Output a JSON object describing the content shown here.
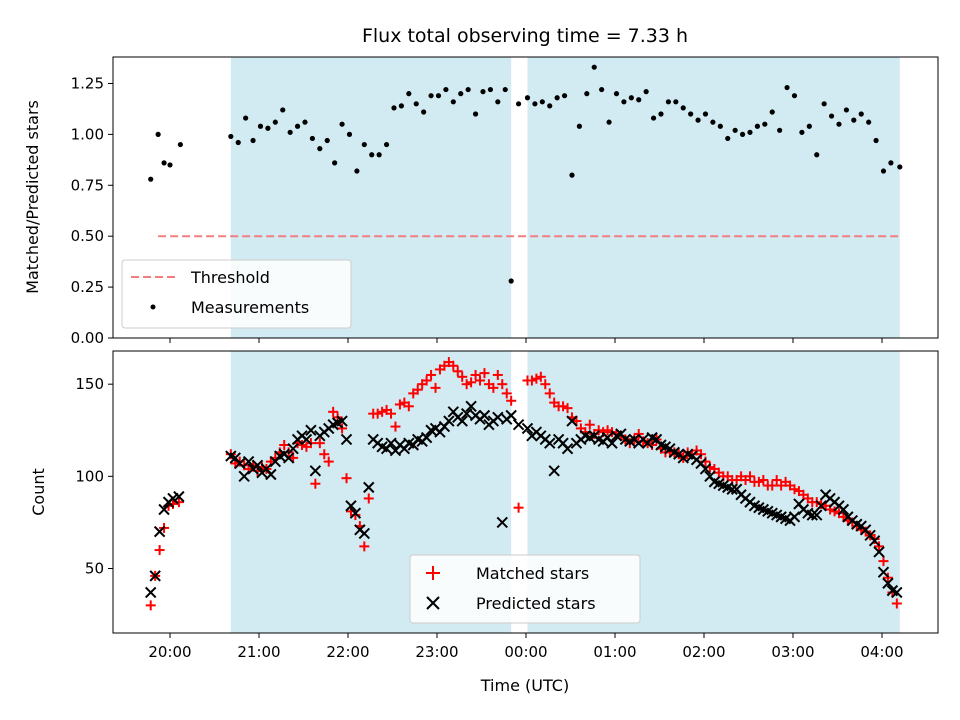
{
  "chart_data": {
    "type": "scatter",
    "title": "Flux total observing time = 7.33 h",
    "xlabel": "Time (UTC)",
    "x_ticks": [
      "20:00",
      "21:00",
      "22:00",
      "23:00",
      "00:00",
      "01:00",
      "02:00",
      "03:00",
      "04:00"
    ],
    "shaded_intervals": [
      [
        "20:41",
        "23:50"
      ],
      [
        "00:01",
        "04:12"
      ]
    ],
    "colors": {
      "shade": "#add8e6",
      "matched": "#ff0000",
      "predicted": "#000000",
      "threshold": "#f08080",
      "measurements": "#000000"
    },
    "panels": [
      {
        "ylabel": "Matched/Predicted stars",
        "ylim": [
          0,
          1.38
        ],
        "yticks": [
          "0.00",
          "0.25",
          "0.50",
          "0.75",
          "1.00",
          "1.25"
        ],
        "legend": {
          "placement": "lower-left",
          "entries": [
            "Threshold",
            "Measurements"
          ]
        },
        "series": [
          {
            "name": "Threshold",
            "style": "dashed-line",
            "x": [
              "19:52",
              "04:12"
            ],
            "values": [
              0.5,
              0.5
            ]
          },
          {
            "name": "Measurements",
            "style": "dots",
            "x": [
              "19:47",
              "19:52",
              "19:56",
              "20:00",
              "20:07",
              "20:41",
              "20:46",
              "20:51",
              "20:56",
              "21:01",
              "21:06",
              "21:11",
              "21:16",
              "21:21",
              "21:26",
              "21:31",
              "21:36",
              "21:41",
              "21:46",
              "21:51",
              "21:56",
              "22:01",
              "22:06",
              "22:11",
              "22:16",
              "22:21",
              "22:26",
              "22:31",
              "22:36",
              "22:41",
              "22:46",
              "22:51",
              "22:56",
              "23:01",
              "23:06",
              "23:11",
              "23:16",
              "23:21",
              "23:26",
              "23:31",
              "23:36",
              "23:41",
              "23:46",
              "23:50",
              "23:55",
              "00:01",
              "00:06",
              "00:11",
              "00:16",
              "00:21",
              "00:26",
              "00:31",
              "00:36",
              "00:41",
              "00:46",
              "00:51",
              "00:56",
              "01:01",
              "01:06",
              "01:11",
              "01:16",
              "01:21",
              "01:26",
              "01:31",
              "01:36",
              "01:41",
              "01:46",
              "01:51",
              "01:56",
              "02:01",
              "02:06",
              "02:11",
              "02:16",
              "02:21",
              "02:26",
              "02:31",
              "02:36",
              "02:41",
              "02:46",
              "02:51",
              "02:56",
              "03:01",
              "03:06",
              "03:11",
              "03:16",
              "03:21",
              "03:26",
              "03:31",
              "03:36",
              "03:41",
              "03:46",
              "03:51",
              "03:56",
              "04:01",
              "04:06",
              "04:12"
            ],
            "values": [
              0.78,
              1.0,
              0.86,
              0.85,
              0.95,
              0.99,
              0.96,
              1.08,
              0.97,
              1.04,
              1.03,
              1.06,
              1.12,
              1.01,
              1.04,
              1.06,
              0.98,
              0.93,
              0.97,
              0.86,
              1.05,
              1.0,
              0.82,
              0.95,
              0.9,
              0.9,
              0.95,
              1.13,
              1.14,
              1.2,
              1.15,
              1.11,
              1.19,
              1.19,
              1.22,
              1.16,
              1.2,
              1.22,
              1.1,
              1.21,
              1.22,
              1.16,
              1.22,
              0.28,
              1.15,
              1.18,
              1.15,
              1.16,
              1.14,
              1.18,
              1.19,
              0.8,
              1.04,
              1.2,
              1.33,
              1.22,
              1.06,
              1.2,
              1.16,
              1.18,
              1.17,
              1.21,
              1.08,
              1.1,
              1.16,
              1.16,
              1.13,
              1.1,
              1.07,
              1.1,
              1.06,
              1.04,
              0.98,
              1.02,
              1.0,
              1.01,
              1.04,
              1.05,
              1.11,
              1.02,
              1.23,
              1.19,
              1.01,
              1.04,
              0.9,
              1.15,
              1.09,
              1.05,
              1.12,
              1.07,
              1.1,
              1.06,
              0.97,
              0.82,
              0.86,
              0.84
            ]
          }
        ]
      },
      {
        "ylabel": "Count",
        "ylim": [
          15,
          168
        ],
        "yticks": [
          "50",
          "100",
          "150"
        ],
        "legend": {
          "placement": "lower-center",
          "entries": [
            "Matched stars",
            "Predicted stars"
          ]
        },
        "series": [
          {
            "name": "Matched stars",
            "style": "plus",
            "x": [
              "19:47",
              "19:50",
              "19:53",
              "19:56",
              "19:59",
              "20:02",
              "20:06",
              "20:41",
              "20:44",
              "20:47",
              "20:50",
              "20:53",
              "20:56",
              "20:59",
              "21:02",
              "21:05",
              "21:08",
              "21:11",
              "21:14",
              "21:17",
              "21:20",
              "21:23",
              "21:26",
              "21:29",
              "21:32",
              "21:35",
              "21:38",
              "21:41",
              "21:44",
              "21:47",
              "21:50",
              "21:53",
              "21:56",
              "21:59",
              "22:02",
              "22:05",
              "22:08",
              "22:11",
              "22:14",
              "22:17",
              "22:20",
              "22:23",
              "22:26",
              "22:29",
              "22:32",
              "22:35",
              "22:38",
              "22:41",
              "22:44",
              "22:47",
              "22:50",
              "22:53",
              "22:56",
              "22:59",
              "23:02",
              "23:05",
              "23:08",
              "23:11",
              "23:14",
              "23:17",
              "23:20",
              "23:23",
              "23:26",
              "23:29",
              "23:32",
              "23:35",
              "23:38",
              "23:41",
              "23:44",
              "23:47",
              "23:50",
              "23:55",
              "00:01",
              "00:04",
              "00:07",
              "00:10",
              "00:13",
              "00:16",
              "00:19",
              "00:22",
              "00:25",
              "00:28",
              "00:31",
              "00:34",
              "00:37",
              "00:40",
              "00:43",
              "00:46",
              "00:49",
              "00:52",
              "00:55",
              "00:58",
              "01:01",
              "01:04",
              "01:07",
              "01:10",
              "01:13",
              "01:16",
              "01:19",
              "01:22",
              "01:25",
              "01:28",
              "01:31",
              "01:34",
              "01:37",
              "01:40",
              "01:43",
              "01:46",
              "01:49",
              "01:52",
              "01:55",
              "01:58",
              "02:01",
              "02:04",
              "02:07",
              "02:10",
              "02:13",
              "02:16",
              "02:19",
              "02:22",
              "02:25",
              "02:28",
              "02:31",
              "02:34",
              "02:37",
              "02:40",
              "02:43",
              "02:46",
              "02:49",
              "02:52",
              "02:55",
              "02:58",
              "03:01",
              "03:04",
              "03:07",
              "03:10",
              "03:13",
              "03:16",
              "03:19",
              "03:22",
              "03:25",
              "03:28",
              "03:31",
              "03:34",
              "03:37",
              "03:40",
              "03:43",
              "03:46",
              "03:49",
              "03:52",
              "03:55",
              "03:58",
              "04:01",
              "04:04",
              "04:07",
              "04:10"
            ],
            "values": [
              30,
              46,
              60,
              72,
              84,
              85,
              86,
              112,
              107,
              108,
              106,
              104,
              106,
              103,
              105,
              104,
              108,
              110,
              113,
              117,
              113,
              110,
              118,
              117,
              116,
              118,
              96,
              118,
              112,
              108,
              135,
              132,
              126,
              99,
              81,
              79,
              73,
              62,
              88,
              134,
              134,
              135,
              136,
              134,
              127,
              139,
              140,
              138,
              145,
              147,
              150,
              152,
              155,
              148,
              158,
              160,
              162,
              160,
              157,
              154,
              150,
              151,
              155,
              152,
              156,
              150,
              148,
              155,
              150,
              145,
              141,
              83,
              152,
              152,
              153,
              154,
              150,
              145,
              140,
              138,
              138,
              137,
              132,
              130,
              126,
              124,
              128,
              123,
              125,
              124,
              125,
              124,
              123,
              122,
              120,
              118,
              120,
              123,
              119,
              118,
              117,
              120,
              115,
              113,
              113,
              113,
              112,
              110,
              113,
              112,
              114,
              112,
              108,
              105,
              104,
              102,
              100,
              100,
              98,
              98,
              100,
              98,
              100,
              97,
              97,
              98,
              95,
              95,
              98,
              95,
              97,
              95,
              93,
              92,
              90,
              88,
              86,
              86,
              85,
              84,
              82,
              81,
              80,
              78,
              76,
              75,
              73,
              71,
              70,
              68,
              66,
              62,
              54,
              45,
              37,
              31
            ]
          },
          {
            "name": "Predicted stars",
            "style": "cross",
            "x": [
              "19:47",
              "19:50",
              "19:53",
              "19:56",
              "19:59",
              "20:02",
              "20:06",
              "20:41",
              "20:44",
              "20:47",
              "20:50",
              "20:53",
              "20:56",
              "20:59",
              "21:02",
              "21:05",
              "21:08",
              "21:11",
              "21:14",
              "21:17",
              "21:20",
              "21:23",
              "21:26",
              "21:29",
              "21:32",
              "21:35",
              "21:38",
              "21:41",
              "21:44",
              "21:47",
              "21:50",
              "21:53",
              "21:56",
              "21:59",
              "22:02",
              "22:05",
              "22:08",
              "22:11",
              "22:14",
              "22:17",
              "22:20",
              "22:23",
              "22:26",
              "22:29",
              "22:32",
              "22:35",
              "22:38",
              "22:41",
              "22:44",
              "22:47",
              "22:50",
              "22:53",
              "22:56",
              "22:59",
              "23:02",
              "23:05",
              "23:08",
              "23:11",
              "23:14",
              "23:17",
              "23:20",
              "23:23",
              "23:26",
              "23:29",
              "23:32",
              "23:35",
              "23:38",
              "23:41",
              "23:44",
              "23:47",
              "23:50",
              "23:55",
              "00:01",
              "00:04",
              "00:07",
              "00:10",
              "00:13",
              "00:16",
              "00:19",
              "00:22",
              "00:25",
              "00:28",
              "00:31",
              "00:34",
              "00:37",
              "00:40",
              "00:43",
              "00:46",
              "00:49",
              "00:52",
              "00:55",
              "00:58",
              "01:01",
              "01:04",
              "01:07",
              "01:10",
              "01:13",
              "01:16",
              "01:19",
              "01:22",
              "01:25",
              "01:28",
              "01:31",
              "01:34",
              "01:37",
              "01:40",
              "01:43",
              "01:46",
              "01:49",
              "01:52",
              "01:55",
              "01:58",
              "02:01",
              "02:04",
              "02:07",
              "02:10",
              "02:13",
              "02:16",
              "02:19",
              "02:22",
              "02:25",
              "02:28",
              "02:31",
              "02:34",
              "02:37",
              "02:40",
              "02:43",
              "02:46",
              "02:49",
              "02:52",
              "02:55",
              "02:58",
              "03:01",
              "03:04",
              "03:07",
              "03:10",
              "03:13",
              "03:16",
              "03:19",
              "03:22",
              "03:25",
              "03:28",
              "03:31",
              "03:34",
              "03:37",
              "03:40",
              "03:43",
              "03:46",
              "03:49",
              "03:52",
              "03:55",
              "03:58",
              "04:01",
              "04:04",
              "04:07",
              "04:10"
            ],
            "values": [
              37,
              46,
              70,
              82,
              86,
              88,
              89,
              111,
              110,
              107,
              100,
              108,
              104,
              106,
              102,
              104,
              101,
              108,
              111,
              112,
              110,
              115,
              120,
              122,
              120,
              125,
              103,
              122,
              124,
              126,
              128,
              129,
              130,
              120,
              84,
              80,
              71,
              69,
              94,
              120,
              118,
              116,
              115,
              118,
              114,
              117,
              115,
              118,
              117,
              120,
              119,
              121,
              125,
              126,
              124,
              127,
              130,
              135,
              132,
              130,
              134,
              138,
              133,
              131,
              133,
              128,
              130,
              132,
              75,
              131,
              133,
              128,
              126,
              122,
              124,
              122,
              120,
              118,
              103,
              120,
              118,
              115,
              130,
              118,
              120,
              122,
              121,
              122,
              120,
              119,
              121,
              118,
              122,
              123,
              120,
              119,
              120,
              118,
              120,
              118,
              121,
              120,
              117,
              116,
              115,
              113,
              112,
              110,
              112,
              111,
              109,
              107,
              104,
              100,
              97,
              96,
              95,
              94,
              93,
              93,
              90,
              88,
              86,
              84,
              83,
              82,
              81,
              80,
              79,
              78,
              77,
              76,
              78,
              85,
              82,
              80,
              79,
              79,
              84,
              90,
              88,
              86,
              84,
              82,
              78,
              76,
              74,
              73,
              71,
              68,
              65,
              59,
              48,
              42,
              38,
              37
            ]
          }
        ]
      }
    ]
  }
}
